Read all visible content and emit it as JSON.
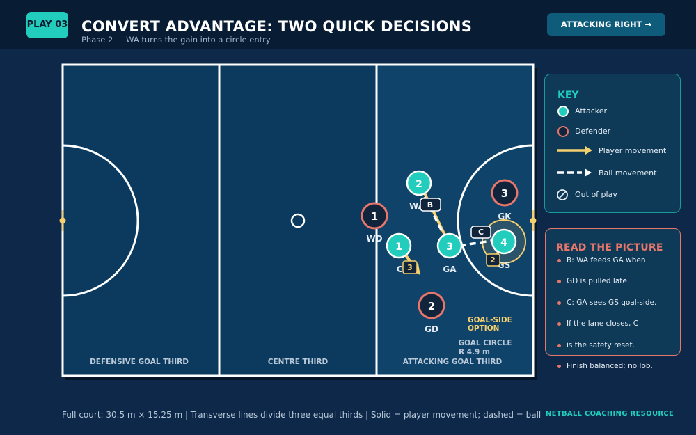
{
  "header": {
    "badge": "PLAY 03",
    "title": "CONVERT ADVANTAGE: TWO QUICK DECISIONS",
    "subtitle": "Phase 2 — WA turns the gain into a circle entry",
    "direction_button": "ATTACKING RIGHT →"
  },
  "court": {
    "thirds": [
      "DEFENSIVE GOAL THIRD",
      "CENTRE THIRD",
      "ATTACKING GOAL THIRD"
    ],
    "goal_side_option": [
      "GOAL-SIDE",
      "OPTION"
    ],
    "goal_circle_label": [
      "GOAL CIRCLE",
      "R 4.9 m"
    ]
  },
  "players": {
    "attackers": [
      {
        "number": "2",
        "position": "WA"
      },
      {
        "number": "1",
        "position": "C"
      },
      {
        "number": "3",
        "position": "GA"
      },
      {
        "number": "4",
        "position": "GS"
      }
    ],
    "defenders": [
      {
        "number": "1",
        "position": "WD"
      },
      {
        "number": "2",
        "position": "GD"
      },
      {
        "number": "3",
        "position": "GK"
      }
    ]
  },
  "tags": {
    "b": "B",
    "c": "C",
    "movement_numbers": [
      "2",
      "3"
    ]
  },
  "key": {
    "heading": "KEY",
    "items": [
      "Attacker",
      "Defender",
      "Player movement",
      "Ball movement",
      "Out of play"
    ]
  },
  "read_panel": {
    "heading": "READ THE PICTURE",
    "lines": [
      "B: WA feeds GA when",
      "GD is pulled late.",
      "C: GA sees GS goal-side.",
      "If the lane closes, C",
      "is the safety reset.",
      "Finish balanced; no lob."
    ]
  },
  "footer": {
    "note": "Full court: 30.5 m × 15.25 m  |  Transverse lines divide three equal thirds  |  Solid = player movement; dashed = ball",
    "brand": "NETBALL COACHING RESOURCE"
  },
  "colors": {
    "background": "#0d2848",
    "court": "#0b3a5e",
    "attacker": "#22cdbd",
    "defender": "#e8766b",
    "movement": "#f6cf6e",
    "ball": "#ffffff"
  }
}
